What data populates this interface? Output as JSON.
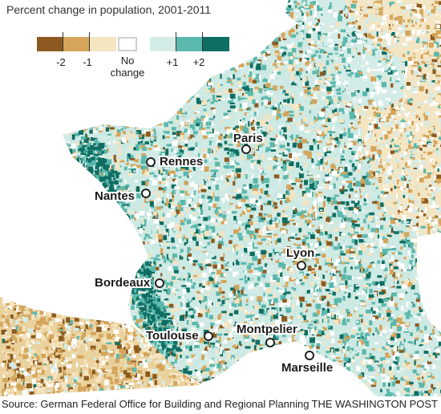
{
  "legend": {
    "title": "Percent change in population, 2001-2011",
    "colors": [
      "#8c5a20",
      "#d4a55a",
      "#f5e4c0",
      "#ffffff",
      "#d4ece8",
      "#5bb8ac",
      "#0f6e62"
    ],
    "tick_minus2": "-2",
    "tick_minus1": "-1",
    "tick_plus1": "+1",
    "tick_plus2": "+2",
    "no_change_line1": "No",
    "no_change_line2": "change"
  },
  "cities": {
    "paris": "Paris",
    "rennes": "Rennes",
    "nantes": "Nantes",
    "lyon": "Lyon",
    "bordeaux": "Bordeaux",
    "toulouse": "Toulouse",
    "montpelier": "Montpelier",
    "marseille": "Marseille"
  },
  "footer": {
    "source": "Source: German Federal Office for Building and Regional Planning",
    "credit": "THE WASHINGTON POST"
  }
}
